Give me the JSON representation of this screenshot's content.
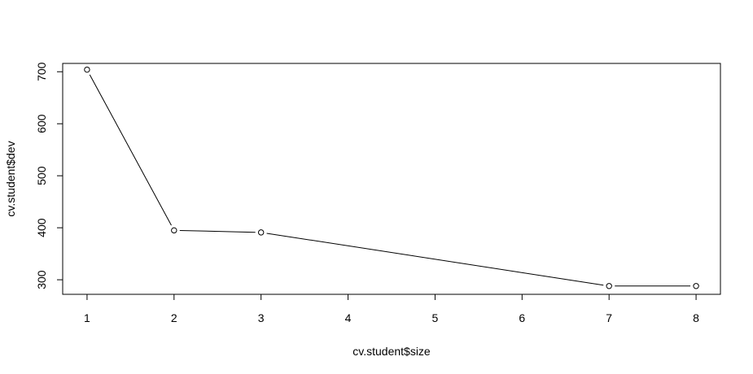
{
  "chart_data": {
    "type": "line",
    "title": "",
    "xlabel": "cv.student$size",
    "ylabel": "cv.student$dev",
    "x": [
      1,
      2,
      3,
      7,
      8
    ],
    "y": [
      704,
      395,
      391,
      288,
      288
    ],
    "xticks": [
      1,
      2,
      3,
      4,
      5,
      6,
      7,
      8
    ],
    "yticks": [
      300,
      400,
      500,
      600,
      700
    ],
    "xlim": [
      0.72,
      8.28
    ],
    "ylim": [
      272,
      716
    ],
    "grid": false,
    "legend": "none",
    "line_color": "#000000",
    "marker": "open-circle"
  }
}
